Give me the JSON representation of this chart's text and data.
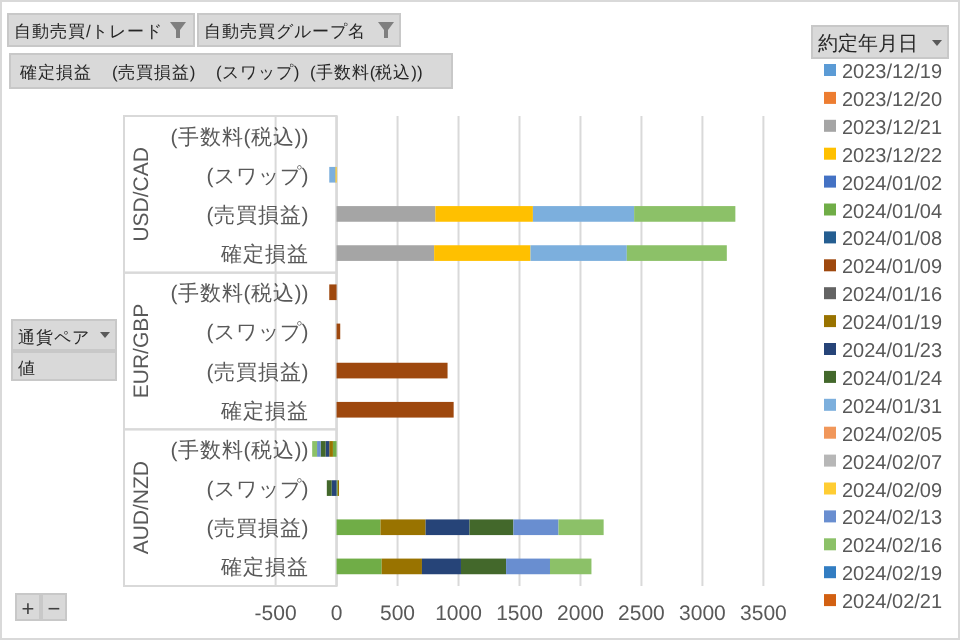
{
  "chart_data": {
    "type": "bar",
    "orientation": "horizontal",
    "stacked": true,
    "categories": [
      "(手数料(税込))",
      "(スワップ)",
      "(売買損益)",
      "確定損益",
      "(手数料(税込))",
      "(スワップ)",
      "(売買損益)",
      "確定損益",
      "(手数料(税込))",
      "(スワップ)",
      "(売買損益)",
      "確定損益"
    ],
    "xlim": [
      -500,
      3500
    ],
    "xticks": [
      -500,
      0,
      500,
      1000,
      1500,
      2000,
      2500,
      3000,
      3500
    ],
    "grid": "x",
    "legend": "right",
    "legend_title": "約定年月日",
    "annotations": [
      "USD/CAD",
      "EUR/GBP",
      "AUD/NZD",
      "自動売買/トレード",
      "自動売買グループ名",
      "確定損益",
      "(売買損益)",
      "(スワップ)",
      "(手数料(税込))",
      "通貨ペア",
      "値",
      "+",
      "−"
    ],
    "series": [
      {
        "name": "2023/12/19",
        "color": "#5b9bd5",
        "values": [
          null,
          null,
          null,
          null,
          null,
          null,
          null,
          null,
          null,
          null,
          null,
          null
        ]
      },
      {
        "name": "2023/12/20",
        "color": "#ed7d31",
        "values": [
          null,
          null,
          null,
          null,
          null,
          null,
          null,
          null,
          null,
          null,
          null,
          null
        ]
      },
      {
        "name": "2023/12/21",
        "color": "#a5a5a5",
        "values": [
          null,
          null,
          810,
          800,
          null,
          null,
          null,
          null,
          null,
          null,
          null,
          null
        ]
      },
      {
        "name": "2023/12/22",
        "color": "#ffc000",
        "values": [
          null,
          -10,
          800,
          790,
          null,
          null,
          null,
          null,
          null,
          null,
          null,
          null
        ]
      },
      {
        "name": "2024/01/02",
        "color": "#4472c4",
        "values": [
          null,
          null,
          null,
          null,
          null,
          null,
          null,
          null,
          null,
          null,
          null,
          null
        ]
      },
      {
        "name": "2024/01/04",
        "color": "#70ad47",
        "values": [
          null,
          null,
          null,
          null,
          null,
          null,
          null,
          null,
          -30,
          10,
          360,
          370
        ]
      },
      {
        "name": "2024/01/08",
        "color": "#255e91",
        "values": [
          null,
          null,
          null,
          null,
          null,
          null,
          null,
          null,
          null,
          null,
          null,
          null
        ]
      },
      {
        "name": "2024/01/09",
        "color": "#9e480e",
        "values": [
          null,
          null,
          null,
          null,
          -60,
          30,
          910,
          960,
          null,
          null,
          null,
          null
        ]
      },
      {
        "name": "2024/01/16",
        "color": "#636363",
        "values": [
          null,
          null,
          null,
          null,
          null,
          null,
          null,
          null,
          null,
          null,
          null,
          null
        ]
      },
      {
        "name": "2024/01/19",
        "color": "#997300",
        "values": [
          null,
          null,
          null,
          null,
          null,
          null,
          null,
          null,
          -30,
          10,
          370,
          330
        ]
      },
      {
        "name": "2024/01/23",
        "color": "#264478",
        "values": [
          null,
          null,
          null,
          null,
          null,
          null,
          null,
          null,
          -30,
          -40,
          360,
          320
        ]
      },
      {
        "name": "2024/01/24",
        "color": "#43682b",
        "values": [
          null,
          null,
          null,
          null,
          null,
          null,
          null,
          null,
          -40,
          -40,
          360,
          370
        ]
      },
      {
        "name": "2024/01/31",
        "color": "#7cafdd",
        "values": [
          null,
          -50,
          830,
          790,
          null,
          null,
          null,
          null,
          null,
          null,
          null,
          null
        ]
      },
      {
        "name": "2024/02/05",
        "color": "#f1975a",
        "values": [
          null,
          null,
          null,
          null,
          null,
          null,
          null,
          null,
          null,
          null,
          null,
          null
        ]
      },
      {
        "name": "2024/02/07",
        "color": "#b7b7b7",
        "values": [
          null,
          null,
          null,
          null,
          null,
          null,
          null,
          null,
          null,
          null,
          null,
          null
        ]
      },
      {
        "name": "2024/02/09",
        "color": "#ffcd33",
        "values": [
          null,
          null,
          null,
          null,
          null,
          null,
          null,
          null,
          null,
          null,
          null,
          null
        ]
      },
      {
        "name": "2024/02/13",
        "color": "#698ed0",
        "values": [
          null,
          null,
          null,
          null,
          null,
          null,
          null,
          null,
          -30,
          null,
          370,
          360
        ]
      },
      {
        "name": "2024/02/16",
        "color": "#8cc168",
        "values": [
          null,
          null,
          830,
          820,
          null,
          null,
          null,
          null,
          -40,
          null,
          370,
          340
        ]
      },
      {
        "name": "2024/02/19",
        "color": "#327dc2",
        "values": [
          null,
          null,
          null,
          null,
          null,
          null,
          null,
          null,
          null,
          null,
          null,
          null
        ]
      },
      {
        "name": "2024/02/21",
        "color": "#d26012",
        "values": [
          null,
          null,
          null,
          null,
          null,
          null,
          null,
          null,
          null,
          null,
          null,
          null
        ]
      }
    ]
  }
}
